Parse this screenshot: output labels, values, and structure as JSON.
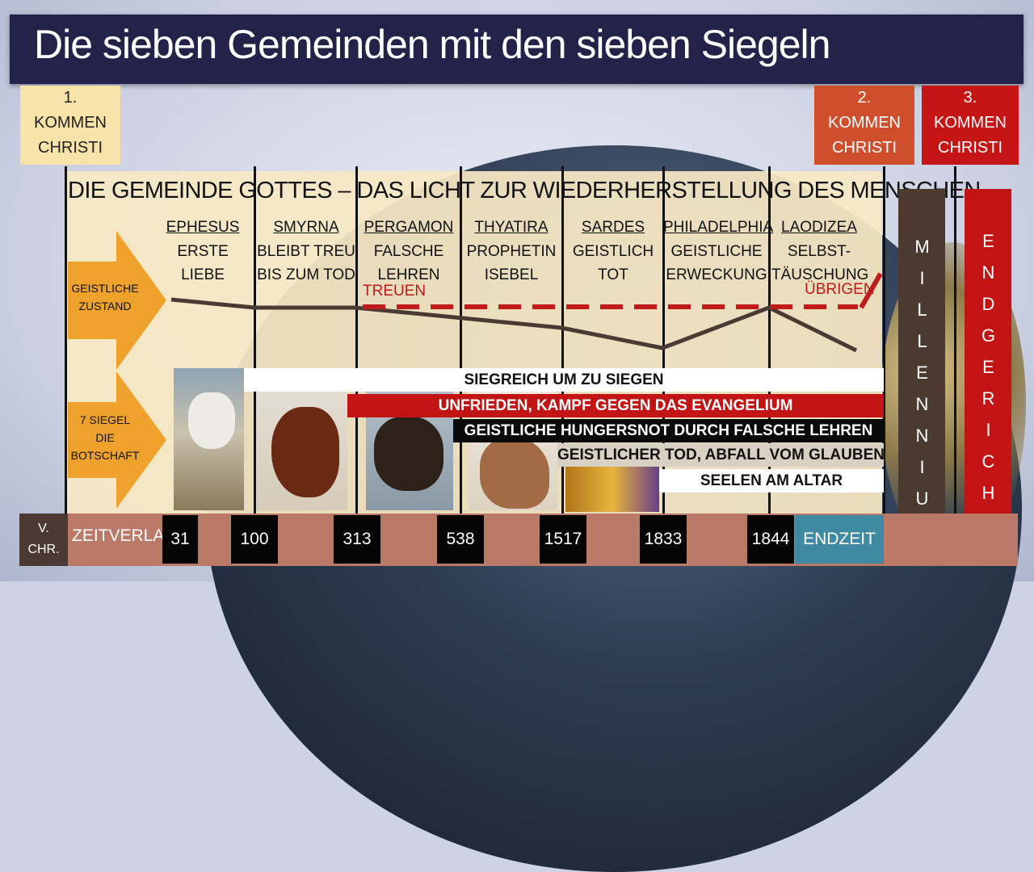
{
  "title": "Die sieben Gemeinden mit den sieben Siegeln",
  "heading": "DIE GEMEINDE GOTTES – DAS LICHT ZUR WIEDERHERSTELLUNG DES MENSCHEN",
  "comings": [
    {
      "number": "1.",
      "line1": "KOMMEN",
      "line2": "CHRISTI"
    },
    {
      "number": "2.",
      "line1": "KOMMEN",
      "line2": "CHRISTI"
    },
    {
      "number": "3.",
      "line1": "KOMMEN",
      "line2": "CHRISTI"
    }
  ],
  "churches": [
    {
      "name": "EPHESUS",
      "line1": "ERSTE",
      "line2": "LIEBE"
    },
    {
      "name": "SMYRNA",
      "line1": "BLEIBT TREU",
      "line2": "BIS ZUM TOD"
    },
    {
      "name": "PERGAMON",
      "line1": "FALSCHE",
      "line2": "LEHREN"
    },
    {
      "name": "THYATIRA",
      "line1": "PROPHETIN",
      "line2": "ISEBEL"
    },
    {
      "name": "SARDES",
      "line1": "GEISTLICH",
      "line2": "TOT"
    },
    {
      "name": "PHILADELPHIA",
      "line1": "GEISTLICHE",
      "line2": "ERWECKUNG"
    },
    {
      "name": "LAODIZEA",
      "line1": "SELBST-",
      "line2": "TÄUSCHUNG"
    }
  ],
  "labels": {
    "spiritual_state_1": "GEISTLICHE",
    "spiritual_state_2": "ZUSTAND",
    "seals_1": "7 SIEGEL",
    "seals_2": "DIE",
    "seals_3": "BOTSCHAFT",
    "faithful": "TREUEN",
    "remnant": "ÜBRIGEN"
  },
  "seals": [
    "SIEGREICH UM ZU SIEGEN",
    "UNFRIEDEN, KAMPF GEGEN DAS EVANGELIUM",
    "GEISTLICHE HUNGERSNOT DURCH FALSCHE LEHREN",
    "GEISTLICHER TOD, ABFALL VOM GLAUBEN",
    "SEELEN AM ALTAR"
  ],
  "timeline": {
    "before_1": "V.",
    "before_2": "CHR.",
    "label": "ZEITVERLAUF",
    "years": [
      "31",
      "100",
      "313",
      "538",
      "1517",
      "1833",
      "1844"
    ],
    "end": "ENDZEIT"
  },
  "millennium": "MILLENNIUM",
  "final_judgment": "ENDGERICHT",
  "colors": {
    "title_bar": "#23234a",
    "cream": "#f6e8c4",
    "arrow": "#eea22c",
    "coming1": "#f8e3a8",
    "coming2": "#cf4f2d",
    "coming3": "#c51515",
    "seal_red": "#c21414",
    "dashed_red": "#c01a1a",
    "endzeit": "#3f8aa2",
    "millennium": "#4b3a30",
    "judgment": "#c31414"
  },
  "chart_data": {
    "type": "line",
    "categories": [
      "EPHESUS",
      "SMYRNA",
      "PERGAMON",
      "THYATIRA",
      "SARDES",
      "PHILADELPHIA",
      "LAODIZEA"
    ],
    "series": [
      {
        "name": "",
        "values": [
          10,
          0,
          0,
          -28,
          -57,
          0,
          -60
        ]
      }
    ]
  }
}
